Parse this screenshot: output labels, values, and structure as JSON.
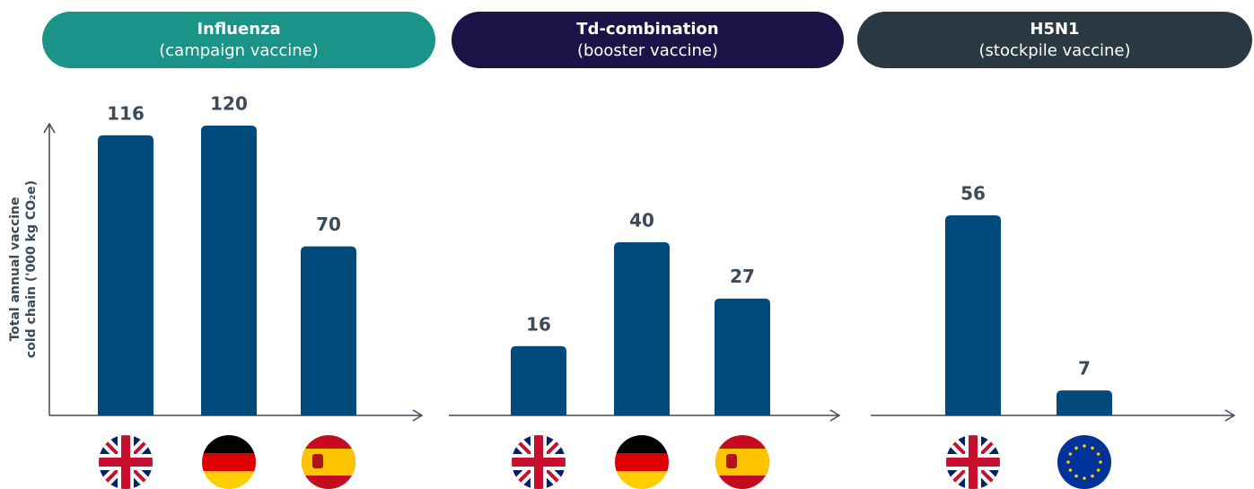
{
  "chart_data": [
    {
      "type": "bar",
      "title": "Influenza",
      "subtitle": "(campaign vaccine)",
      "header_color": "#1a9488",
      "y_label": [
        "Total annual vaccine",
        "cold chain  ('000 kg CO₂e)"
      ],
      "values": [
        116,
        120,
        70
      ],
      "color": "#004a7c"
    },
    {
      "type": "bar",
      "title": "Td-combination",
      "subtitle": "(booster vaccine)",
      "header_color": "#1b1446",
      "values": [
        16,
        40,
        27
      ],
      "color": "#004a7c"
    },
    {
      "type": "bar",
      "title": "H5N1",
      "subtitle": "(stockpile vaccine)",
      "header_color": "#2b3a42",
      "values": [
        56,
        7
      ],
      "color": "#004a7c"
    }
  ]
}
